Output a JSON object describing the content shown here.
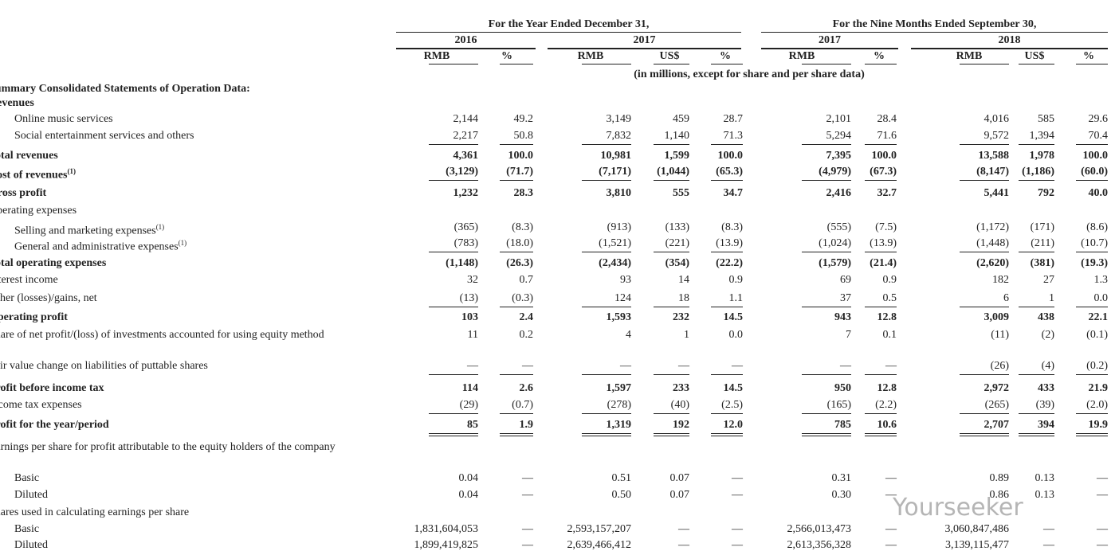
{
  "header": {
    "period_groups": [
      "For the Year Ended December 31,",
      "For the Nine Months Ended September 30,"
    ],
    "years": [
      "2016",
      "2017",
      "2017",
      "2018"
    ],
    "units": [
      "RMB",
      "%",
      "RMB",
      "US$",
      "%",
      "RMB",
      "%",
      "RMB",
      "US$",
      "%"
    ],
    "note": "(in millions, except for share and per share data)"
  },
  "rows": [
    {
      "label": "Summary Consolidated Statements of Operation Data:",
      "bold": true
    },
    {
      "label": "Revenues",
      "bold": true
    },
    {
      "label": "Online music services",
      "indent": true,
      "values": [
        "2,144",
        "49.2",
        "3,149",
        "459",
        "28.7",
        "2,101",
        "28.4",
        "4,016",
        "585",
        "29.6"
      ]
    },
    {
      "label": "Social entertainment services and others",
      "indent": true,
      "values": [
        "2,217",
        "50.8",
        "7,832",
        "1,140",
        "71.3",
        "5,294",
        "71.6",
        "9,572",
        "1,394",
        "70.4"
      ],
      "rule": "single"
    },
    {
      "label": "Total revenues",
      "bold": true,
      "values": [
        "4,361",
        "100.0",
        "10,981",
        "1,599",
        "100.0",
        "7,395",
        "100.0",
        "13,588",
        "1,978",
        "100.0"
      ]
    },
    {
      "label": "Cost of revenues",
      "note": "(1)",
      "bold": true,
      "values": [
        "(3,129)",
        "(71.7)",
        "(7,171)",
        "(1,044)",
        "(65.3)",
        "(4,979)",
        "(67.3)",
        "(8,147)",
        "(1,186)",
        "(60.0)"
      ],
      "rule": "single"
    },
    {
      "label": "Gross profit",
      "bold": true,
      "values": [
        "1,232",
        "28.3",
        "3,810",
        "555",
        "34.7",
        "2,416",
        "32.7",
        "5,441",
        "792",
        "40.0"
      ]
    },
    {
      "label": "Operating expenses"
    },
    {
      "label": "Selling and marketing expenses",
      "note": "(1)",
      "indent": true,
      "values": [
        "(365)",
        "(8.3)",
        "(913)",
        "(133)",
        "(8.3)",
        "(555)",
        "(7.5)",
        "(1,172)",
        "(171)",
        "(8.6)"
      ]
    },
    {
      "label": "General and administrative expenses",
      "note": "(1)",
      "indent": true,
      "values": [
        "(783)",
        "(18.0)",
        "(1,521)",
        "(221)",
        "(13.9)",
        "(1,024)",
        "(13.9)",
        "(1,448)",
        "(211)",
        "(10.7)"
      ],
      "rule": "single"
    },
    {
      "label": "Total operating expenses",
      "bold": true,
      "values": [
        "(1,148)",
        "(26.3)",
        "(2,434)",
        "(354)",
        "(22.2)",
        "(1,579)",
        "(21.4)",
        "(2,620)",
        "(381)",
        "(19.3)"
      ]
    },
    {
      "label": "Interest income",
      "values": [
        "32",
        "0.7",
        "93",
        "14",
        "0.9",
        "69",
        "0.9",
        "182",
        "27",
        "1.3"
      ]
    },
    {
      "label": "Other (losses)/gains, net",
      "values": [
        "(13)",
        "(0.3)",
        "124",
        "18",
        "1.1",
        "37",
        "0.5",
        "6",
        "1",
        "0.0"
      ],
      "rule": "single"
    },
    {
      "label": "Operating profit",
      "bold": true,
      "values": [
        "103",
        "2.4",
        "1,593",
        "232",
        "14.5",
        "943",
        "12.8",
        "3,009",
        "438",
        "22.1"
      ]
    },
    {
      "label": "Share of net profit/(loss) of investments accounted for using equity method",
      "values": [
        "11",
        "0.2",
        "4",
        "1",
        "0.0",
        "7",
        "0.1",
        "(11)",
        "(2)",
        "(0.1)"
      ]
    },
    {
      "label": "Fair value change on liabilities of puttable shares",
      "values": [
        "—",
        "—",
        "—",
        "—",
        "—",
        "—",
        "—",
        "(26)",
        "(4)",
        "(0.2)"
      ],
      "rule": "single"
    },
    {
      "label": "Profit before income tax",
      "bold": true,
      "values": [
        "114",
        "2.6",
        "1,597",
        "233",
        "14.5",
        "950",
        "12.8",
        "2,972",
        "433",
        "21.9"
      ]
    },
    {
      "label": "Income tax expenses",
      "values": [
        "(29)",
        "(0.7)",
        "(278)",
        "(40)",
        "(2.5)",
        "(165)",
        "(2.2)",
        "(265)",
        "(39)",
        "(2.0)"
      ],
      "rule": "single"
    },
    {
      "label": "Profit for the year/period",
      "bold": true,
      "values": [
        "85",
        "1.9",
        "1,319",
        "192",
        "12.0",
        "785",
        "10.6",
        "2,707",
        "394",
        "19.9"
      ],
      "rule": "double"
    },
    {
      "label": "Earnings per share for profit attributable to the equity holders of the company"
    },
    {
      "label": "Basic",
      "indent": true,
      "values": [
        "0.04",
        "—",
        "0.51",
        "0.07",
        "—",
        "0.31",
        "—",
        "0.89",
        "0.13",
        "—"
      ]
    },
    {
      "label": "Diluted",
      "indent": true,
      "values": [
        "0.04",
        "—",
        "0.50",
        "0.07",
        "—",
        "0.30",
        "—",
        "0.86",
        "0.13",
        "—"
      ]
    },
    {
      "label": "Shares used in calculating earnings per share"
    },
    {
      "label": "Basic",
      "indent": true,
      "values": [
        "1,831,604,053",
        "—",
        "2,593,157,207",
        "—",
        "—",
        "2,566,013,473",
        "—",
        "3,060,847,486",
        "—",
        "—"
      ]
    },
    {
      "label": "Diluted",
      "indent": true,
      "values": [
        "1,899,419,825",
        "—",
        "2,639,466,412",
        "—",
        "—",
        "2,613,356,328",
        "—",
        "3,139,115,477",
        "—",
        "—"
      ]
    }
  ],
  "watermark": "Yourseeker"
}
